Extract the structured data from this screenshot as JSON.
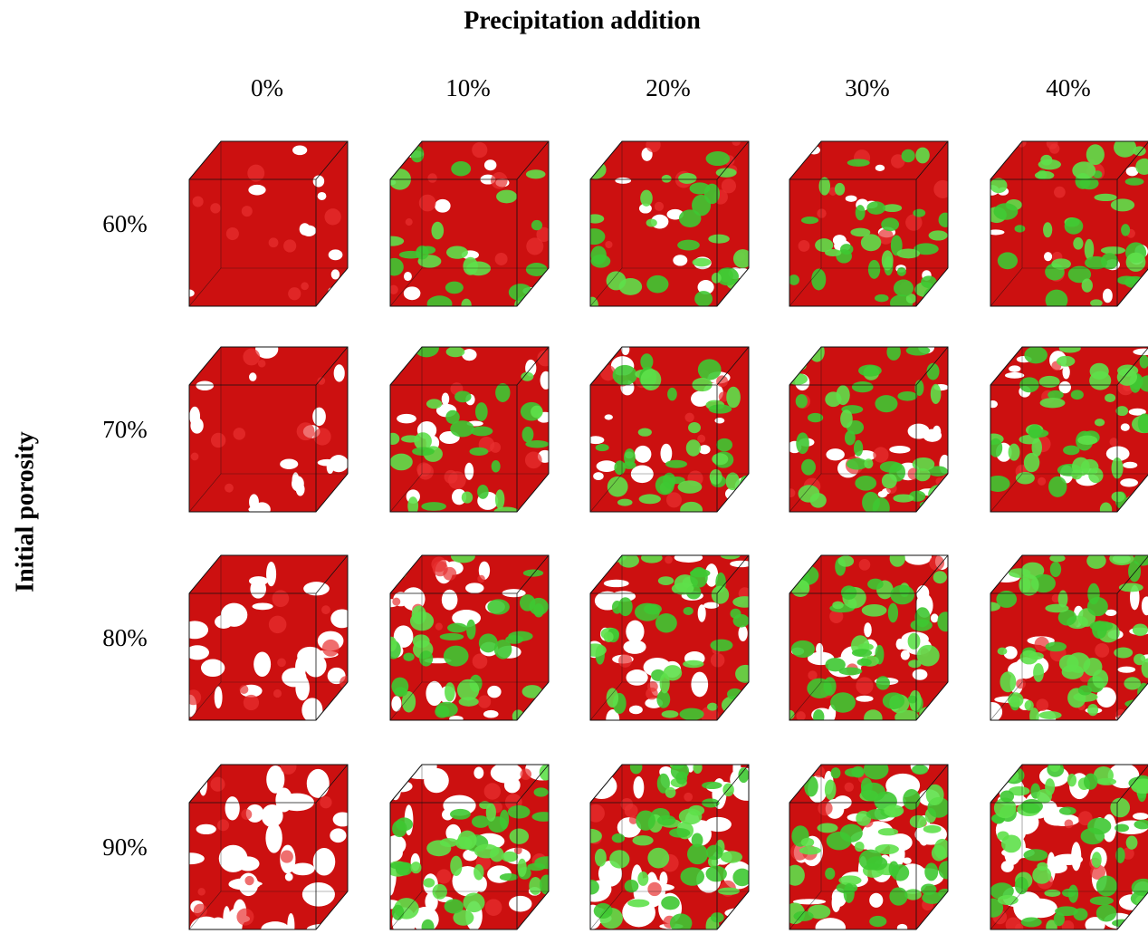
{
  "title": "Precipitation addition",
  "columns": [
    "0%",
    "10%",
    "20%",
    "30%",
    "40%"
  ],
  "row_axis_label": "Initial porosity",
  "rows": [
    "60%",
    "70%",
    "80%",
    "90%"
  ]
}
